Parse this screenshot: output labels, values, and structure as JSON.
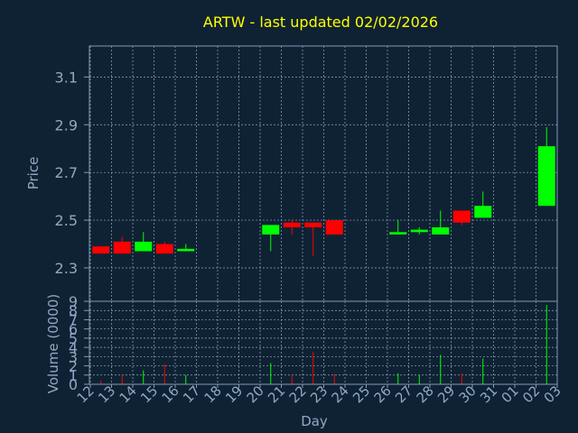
{
  "chart_data": {
    "type": "candlestick",
    "title": "ARTW - last updated 02/02/2026",
    "xlabel": "Day",
    "colors": {
      "background": "#0f2233",
      "title": "#ffff00",
      "text": "#8fa8c4",
      "axis": "#7f9bb8",
      "grid": "#8fa8c4",
      "up": "#00ff00",
      "down": "#ff0000"
    },
    "x_ticks": [
      "12",
      "13",
      "14",
      "15",
      "16",
      "17",
      "18",
      "19",
      "20",
      "21",
      "22",
      "23",
      "24",
      "25",
      "26",
      "27",
      "28",
      "29",
      "30",
      "31",
      "01",
      "02",
      "03"
    ],
    "price_panel": {
      "ylabel": "Price",
      "ylim": [
        2.16,
        3.23
      ],
      "yticks": [
        "2.3",
        "2.5",
        "2.7",
        "2.9",
        "3.1"
      ],
      "grid": true
    },
    "volume_panel": {
      "ylabel": "Volume (0000)",
      "ylim": [
        0,
        9
      ],
      "yticks": [
        "0",
        "1",
        "2",
        "3",
        "4",
        "5",
        "6",
        "7",
        "8",
        "9"
      ],
      "grid": true
    },
    "candles": [
      {
        "day": "12",
        "open": 2.39,
        "close": 2.36,
        "high": 2.39,
        "low": 2.36,
        "volume": 0.4
      },
      {
        "day": "13",
        "open": 2.41,
        "close": 2.36,
        "high": 2.43,
        "low": 2.36,
        "volume": 1.0
      },
      {
        "day": "14",
        "open": 2.37,
        "close": 2.41,
        "high": 2.45,
        "low": 2.37,
        "volume": 1.5
      },
      {
        "day": "15",
        "open": 2.4,
        "close": 2.36,
        "high": 2.41,
        "low": 2.36,
        "volume": 2.2
      },
      {
        "day": "16",
        "open": 2.37,
        "close": 2.38,
        "high": 2.4,
        "low": 2.37,
        "volume": 1.0
      },
      {
        "day": "20",
        "open": 2.44,
        "close": 2.48,
        "high": 2.48,
        "low": 2.37,
        "volume": 2.3
      },
      {
        "day": "21",
        "open": 2.49,
        "close": 2.47,
        "high": 2.5,
        "low": 2.44,
        "volume": 1.0
      },
      {
        "day": "22",
        "open": 2.49,
        "close": 2.47,
        "high": 2.49,
        "low": 2.35,
        "volume": 3.5
      },
      {
        "day": "23",
        "open": 2.5,
        "close": 2.44,
        "high": 2.5,
        "low": 2.44,
        "volume": 1.1
      },
      {
        "day": "26",
        "open": 2.44,
        "close": 2.45,
        "high": 2.5,
        "low": 2.44,
        "volume": 1.2
      },
      {
        "day": "27",
        "open": 2.45,
        "close": 2.46,
        "high": 2.47,
        "low": 2.44,
        "volume": 1.0
      },
      {
        "day": "28",
        "open": 2.44,
        "close": 2.47,
        "high": 2.54,
        "low": 2.44,
        "volume": 3.2
      },
      {
        "day": "29",
        "open": 2.54,
        "close": 2.49,
        "high": 2.54,
        "low": 2.48,
        "volume": 1.2
      },
      {
        "day": "30",
        "open": 2.51,
        "close": 2.56,
        "high": 2.62,
        "low": 2.51,
        "volume": 2.8
      },
      {
        "day": "02",
        "open": 2.56,
        "close": 2.81,
        "high": 2.89,
        "low": 2.56,
        "volume": 8.6
      }
    ]
  }
}
